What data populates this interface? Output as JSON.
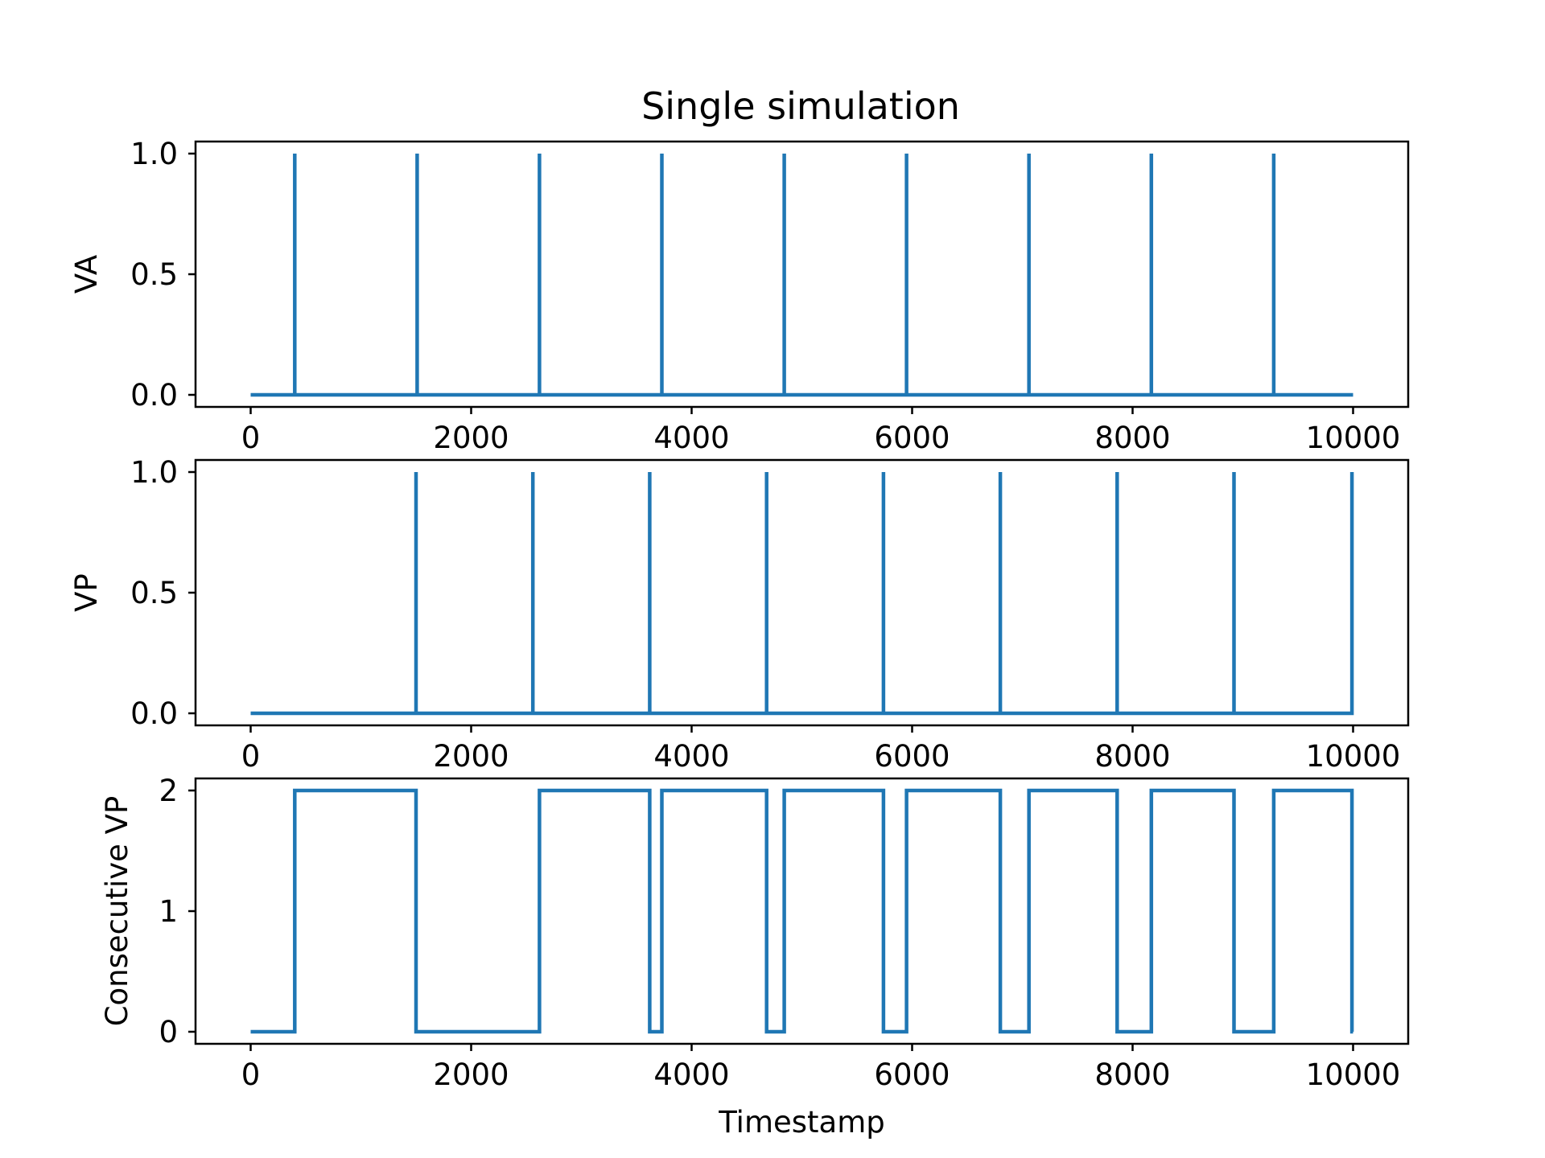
{
  "title": "Single simulation",
  "colors": {
    "series": "#1f77b4",
    "axes": "#000000",
    "background": "#ffffff"
  },
  "chart_data": [
    {
      "type": "line",
      "title": "Single simulation",
      "xlabel": "",
      "ylabel": "VA",
      "xlim": [
        -500,
        10500
      ],
      "ylim": [
        -0.05,
        1.05
      ],
      "xticks": [
        0,
        2000,
        4000,
        6000,
        8000,
        10000
      ],
      "xtick_labels": [
        "0",
        "2000",
        "4000",
        "6000",
        "8000",
        "10000"
      ],
      "yticks": [
        0,
        0.5,
        1
      ],
      "ytick_labels": [
        "0.0",
        "0.5",
        "1.0"
      ],
      "grid": false,
      "series": [
        {
          "x": [
            0,
            400,
            400,
            400,
            1510,
            1510,
            1510,
            2620,
            2620,
            2620,
            3730,
            3730,
            3730,
            4840,
            4840,
            4840,
            5950,
            5950,
            5950,
            7060,
            7060,
            7060,
            8170,
            8170,
            8170,
            9280,
            9280,
            9280,
            10000
          ],
          "y": [
            0,
            0,
            1,
            0,
            0,
            1,
            0,
            0,
            1,
            0,
            0,
            1,
            0,
            0,
            1,
            0,
            0,
            1,
            0,
            0,
            1,
            0,
            0,
            1,
            0,
            0,
            1,
            0,
            0
          ]
        }
      ]
    },
    {
      "type": "line",
      "title": "",
      "xlabel": "",
      "ylabel": "VP",
      "xlim": [
        -500,
        10500
      ],
      "ylim": [
        -0.05,
        1.05
      ],
      "xticks": [
        0,
        2000,
        4000,
        6000,
        8000,
        10000
      ],
      "xtick_labels": [
        "0",
        "2000",
        "4000",
        "6000",
        "8000",
        "10000"
      ],
      "yticks": [
        0,
        0.5,
        1
      ],
      "ytick_labels": [
        "0.0",
        "0.5",
        "1.0"
      ],
      "grid": false,
      "series": [
        {
          "x": [
            0,
            1500,
            1500,
            1500,
            2560,
            2560,
            2560,
            3620,
            3620,
            3620,
            4680,
            4680,
            4680,
            5740,
            5740,
            5740,
            6800,
            6800,
            6800,
            7860,
            7860,
            7860,
            8920,
            8920,
            8920,
            9990,
            9990,
            9990,
            10000
          ],
          "y": [
            0,
            0,
            1,
            0,
            0,
            1,
            0,
            0,
            1,
            0,
            0,
            1,
            0,
            0,
            1,
            0,
            0,
            1,
            0,
            0,
            1,
            0,
            0,
            1,
            0,
            0,
            1,
            0,
            0
          ]
        }
      ]
    },
    {
      "type": "line",
      "title": "",
      "xlabel": "Timestamp",
      "ylabel": "Consecutive VP",
      "xlim": [
        -500,
        10500
      ],
      "ylim": [
        -0.1,
        2.1
      ],
      "xticks": [
        0,
        2000,
        4000,
        6000,
        8000,
        10000
      ],
      "xtick_labels": [
        "0",
        "2000",
        "4000",
        "6000",
        "8000",
        "10000"
      ],
      "yticks": [
        0,
        1,
        2
      ],
      "ytick_labels": [
        "0",
        "1",
        "2"
      ],
      "grid": false,
      "series": [
        {
          "x": [
            0,
            400,
            400,
            1500,
            1500,
            2620,
            2620,
            3620,
            3620,
            3730,
            3730,
            4680,
            4680,
            4840,
            4840,
            5740,
            5740,
            5950,
            5950,
            6800,
            6800,
            7060,
            7060,
            7860,
            7860,
            8170,
            8170,
            8920,
            8920,
            9280,
            9280,
            9990,
            9990,
            10000
          ],
          "y": [
            0,
            0,
            2,
            2,
            0,
            0,
            2,
            2,
            0,
            0,
            2,
            2,
            0,
            0,
            2,
            2,
            0,
            0,
            2,
            2,
            0,
            0,
            2,
            2,
            0,
            0,
            2,
            2,
            0,
            0,
            2,
            2,
            0,
            0
          ]
        }
      ]
    }
  ]
}
